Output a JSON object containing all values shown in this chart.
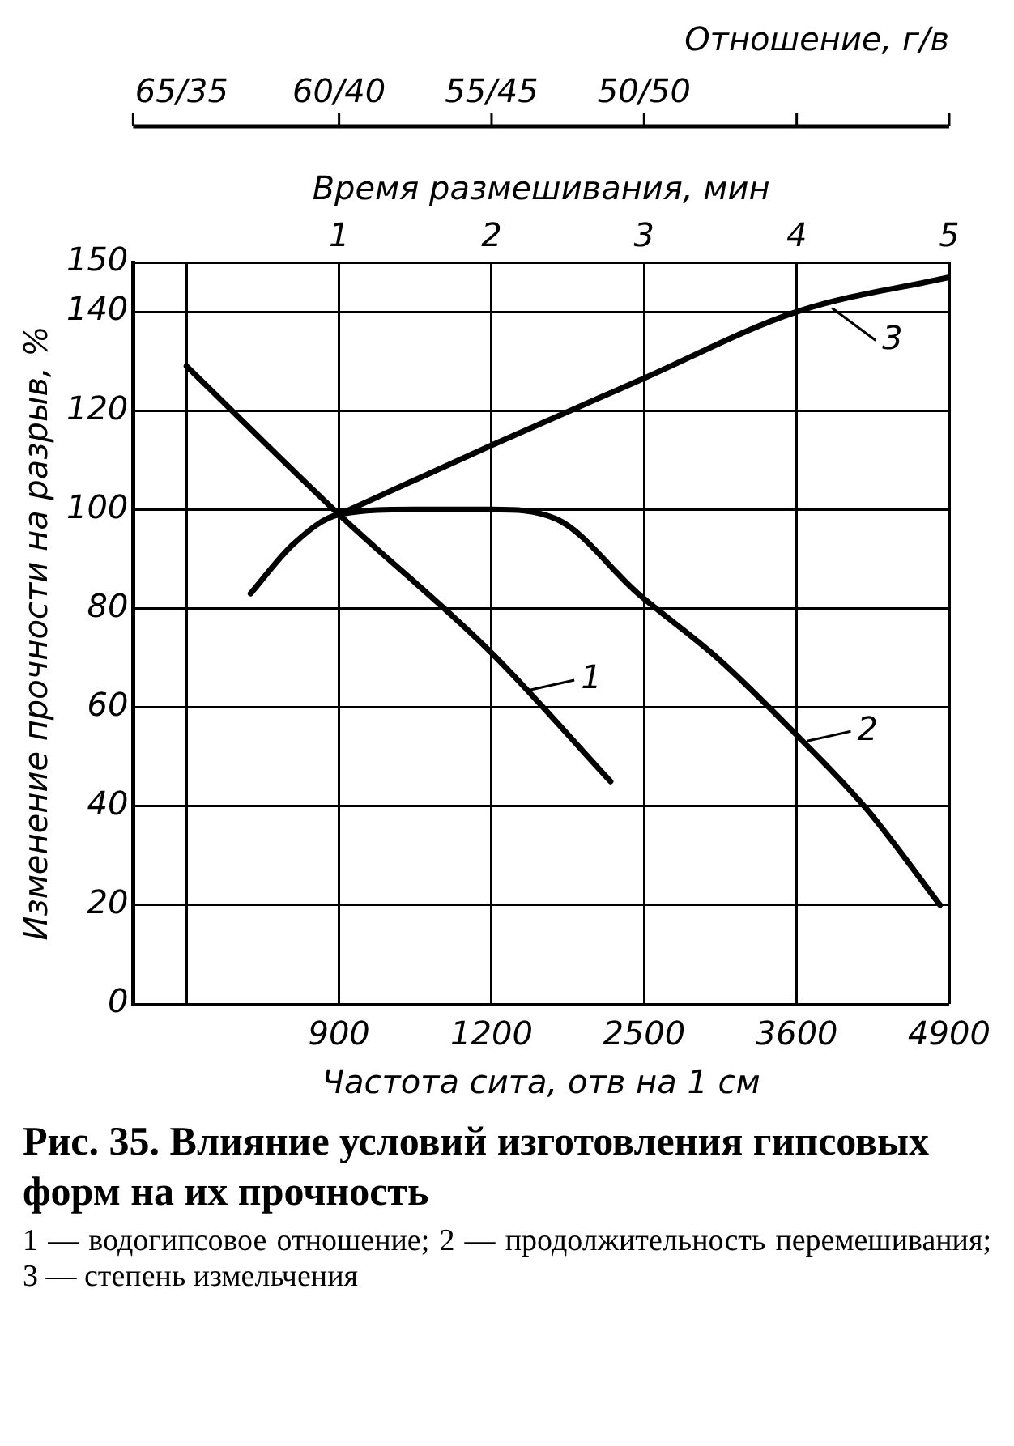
{
  "chart_data": {
    "type": "line",
    "title": "Рис. 35. Влияние условий изготовления гипсовых форм на их прочность",
    "xlabel": "Время размешивания, мин",
    "xlim": [
      -0.35,
      5
    ],
    "xticks": [
      {
        "value": 0,
        "label": null
      },
      1,
      2,
      3,
      4,
      5
    ],
    "ylabel": "Изменение прочности на разрыв, %",
    "ylim": [
      0,
      150
    ],
    "yticks": [
      0,
      20,
      40,
      60,
      80,
      100,
      120,
      140,
      150
    ],
    "grid": true,
    "legend": "right",
    "marker": "none",
    "line_style": "solid",
    "series": [
      {
        "name": "1",
        "color": "#000000",
        "x": [
          0,
          1,
          2,
          2.78
        ],
        "values": [
          129,
          99,
          71,
          45
        ]
      },
      {
        "name": "2",
        "color": "#000000",
        "x": [
          0.42,
          0.7,
          1,
          1.5,
          2,
          2.43,
          2.96,
          3.48,
          3.98,
          4.47,
          4.94
        ],
        "values": [
          83,
          93,
          99,
          100,
          100,
          98,
          83,
          70,
          55,
          39,
          20
        ]
      },
      {
        "name": "3",
        "color": "#000000",
        "x": [
          1,
          2,
          2.96,
          4,
          5
        ],
        "values": [
          99,
          113,
          126,
          140,
          147
        ]
      }
    ],
    "annotations": [
      "Отношение, г/в",
      "65/35",
      "60/40",
      "55/45",
      "50/50",
      "Частота сита, отв на 1 см",
      "900",
      "1200",
      "2500",
      "3600",
      "4900",
      "1 — водогипсовое отношение; 2 — продолжительность перемешивания; 3 — степень измельчения"
    ]
  }
}
